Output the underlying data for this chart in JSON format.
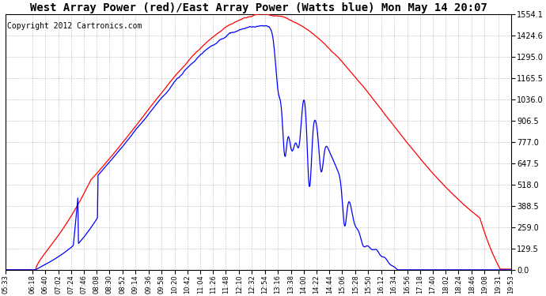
{
  "title": "West Array Power (red)/East Array Power (Watts blue) Mon May 14 20:07",
  "copyright": "Copyright 2012 Cartronics.com",
  "y_max": 1554.1,
  "y_ticks": [
    0.0,
    129.5,
    259.0,
    388.5,
    518.0,
    647.5,
    777.0,
    906.5,
    1036.0,
    1165.5,
    1295.0,
    1424.6,
    1554.1
  ],
  "x_labels": [
    "05:33",
    "06:18",
    "06:40",
    "07:02",
    "07:24",
    "07:46",
    "08:08",
    "08:30",
    "08:52",
    "09:14",
    "09:36",
    "09:58",
    "10:20",
    "10:42",
    "11:04",
    "11:26",
    "11:48",
    "12:10",
    "12:32",
    "12:54",
    "13:16",
    "13:38",
    "14:00",
    "14:22",
    "14:44",
    "15:06",
    "15:28",
    "15:50",
    "16:12",
    "16:34",
    "16:56",
    "17:18",
    "17:40",
    "18:02",
    "18:24",
    "18:46",
    "19:08",
    "19:31",
    "19:53"
  ],
  "background_color": "#ffffff",
  "grid_color": "#aaaaaa",
  "red_color": "#ff0000",
  "blue_color": "#0000ff",
  "title_fontsize": 10,
  "copyright_fontsize": 7
}
